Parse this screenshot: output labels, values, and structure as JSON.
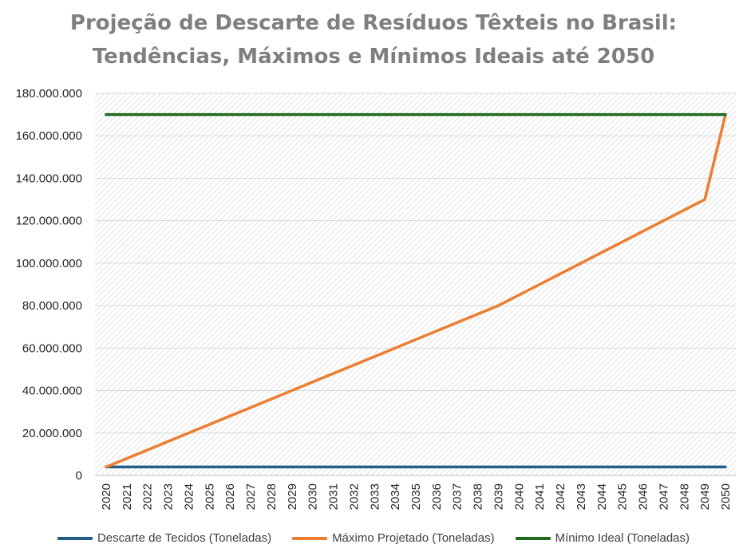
{
  "chart_data": {
    "type": "line",
    "title_lines": [
      "Projeção de Descarte de Resíduos Têxteis no Brasil:",
      "Tendências, Máximos e Mínimos Ideais até 2050"
    ],
    "xlabel": "",
    "ylabel": "",
    "x": [
      "2020",
      "2021",
      "2022",
      "2023",
      "2024",
      "2025",
      "2026",
      "2027",
      "2028",
      "2029",
      "2030",
      "2031",
      "2032",
      "2033",
      "2034",
      "2035",
      "2036",
      "2037",
      "2038",
      "2039",
      "2040",
      "2041",
      "2042",
      "2043",
      "2044",
      "2045",
      "2046",
      "2047",
      "2048",
      "2049",
      "2050"
    ],
    "ylim": [
      0,
      180000000
    ],
    "yticks": [
      0,
      20000000,
      40000000,
      60000000,
      80000000,
      100000000,
      120000000,
      140000000,
      160000000,
      180000000
    ],
    "ytick_labels": [
      "0",
      "20.000.000",
      "40.000.000",
      "60.000.000",
      "80.000.000",
      "100.000.000",
      "120.000.000",
      "140.000.000",
      "160.000.000",
      "180.000.000"
    ],
    "grid": true,
    "legend_position": "bottom",
    "series": [
      {
        "name": "Descarte de Tecidos (Toneladas)",
        "color": "#1f5f88",
        "values": [
          4000000,
          4000000,
          4000000,
          4000000,
          4000000,
          4000000,
          4000000,
          4000000,
          4000000,
          4000000,
          4000000,
          4000000,
          4000000,
          4000000,
          4000000,
          4000000,
          4000000,
          4000000,
          4000000,
          4000000,
          4000000,
          4000000,
          4000000,
          4000000,
          4000000,
          4000000,
          4000000,
          4000000,
          4000000,
          4000000,
          4000000
        ]
      },
      {
        "name": "Máximo Projetado (Toneladas)",
        "color": "#ed7d31",
        "values": [
          4000000,
          8000000,
          12000000,
          16000000,
          20000000,
          24000000,
          28000000,
          32000000,
          36000000,
          40000000,
          44000000,
          48000000,
          52000000,
          56000000,
          60000000,
          64000000,
          68000000,
          72000000,
          76000000,
          80000000,
          85000000,
          90000000,
          95000000,
          100000000,
          105000000,
          110000000,
          115000000,
          120000000,
          125000000,
          130000000,
          170000000
        ]
      },
      {
        "name": "Mínimo Ideal (Toneladas)",
        "color": "#1e6b1e",
        "values": [
          170000000,
          170000000,
          170000000,
          170000000,
          170000000,
          170000000,
          170000000,
          170000000,
          170000000,
          170000000,
          170000000,
          170000000,
          170000000,
          170000000,
          170000000,
          170000000,
          170000000,
          170000000,
          170000000,
          170000000,
          170000000,
          170000000,
          170000000,
          170000000,
          170000000,
          170000000,
          170000000,
          170000000,
          170000000,
          170000000,
          170000000
        ]
      }
    ]
  }
}
